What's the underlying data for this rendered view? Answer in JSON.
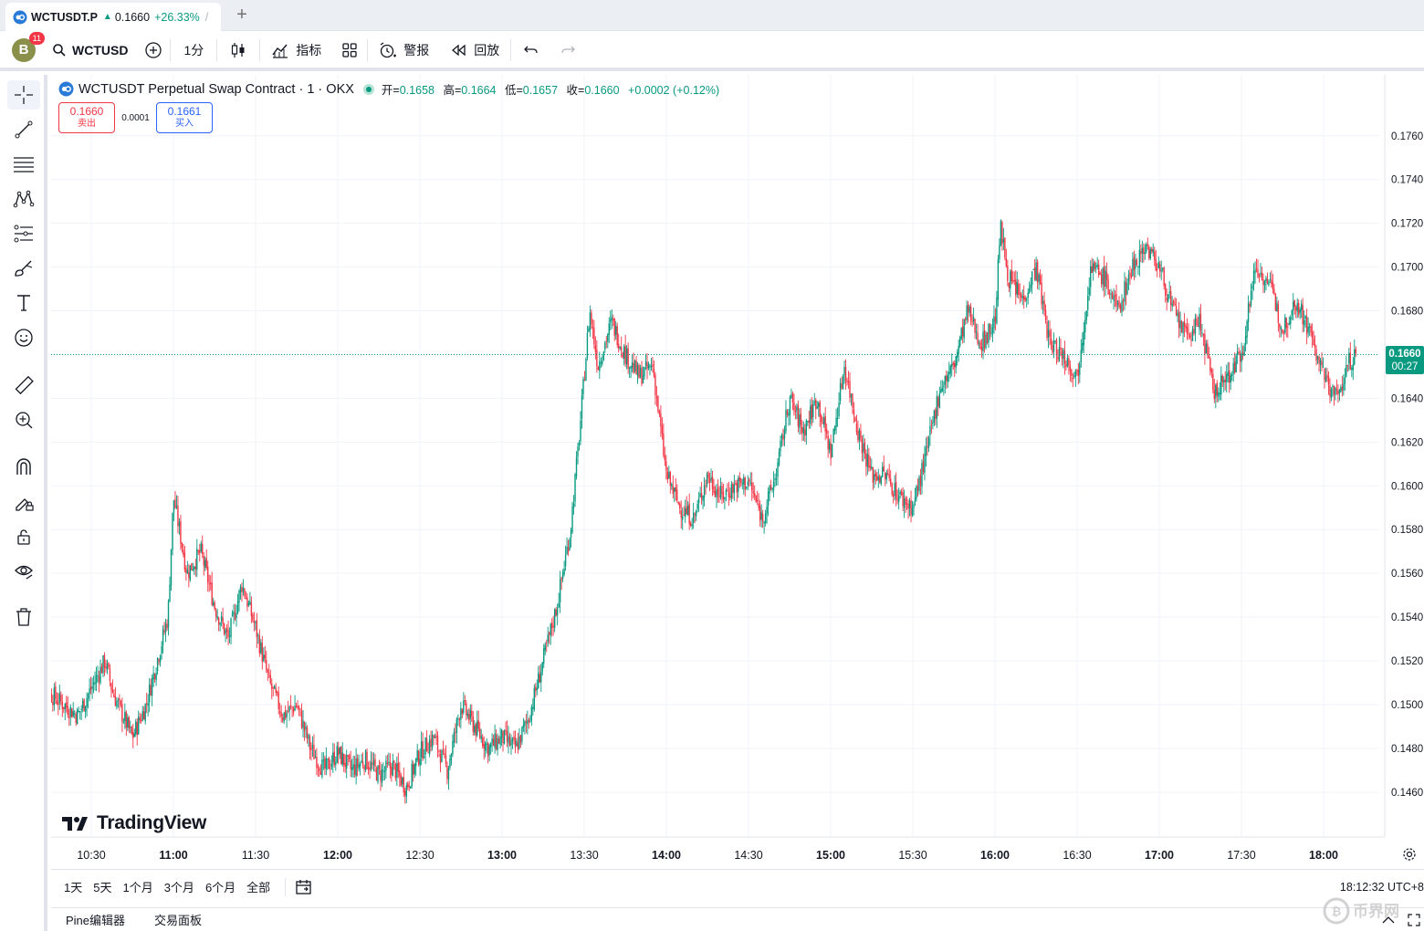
{
  "tab": {
    "symbol": "WCTUSDT.P",
    "price": "0.1660",
    "change": "+26.33%",
    "slash": "/"
  },
  "toolbar": {
    "avatar_letter": "B",
    "notifications": "11",
    "search_symbol": "WCTUSD",
    "interval": "1分",
    "indicators_label": "指标",
    "alert_label": "警报",
    "replay_label": "回放"
  },
  "legend": {
    "title": "WCTUSDT Perpetual Swap Contract · 1 · OKX",
    "open_label": "开=",
    "open": "0.1658",
    "high_label": "高=",
    "high": "0.1664",
    "low_label": "低=",
    "low": "0.1657",
    "close_label": "收=",
    "close": "0.1660",
    "change": "+0.0002 (+0.12%)"
  },
  "trade": {
    "sell_price": "0.1660",
    "sell_label": "卖出",
    "spread": "0.0001",
    "buy_price": "0.1661",
    "buy_label": "买入"
  },
  "price_tag": {
    "price": "0.1660",
    "countdown": "00:27"
  },
  "brand": "TradingView",
  "bottom": {
    "ranges": [
      "1天",
      "5天",
      "1个月",
      "3个月",
      "6个月",
      "全部"
    ],
    "clock": "18:12:32 UTC+8"
  },
  "panels": {
    "pine": "Pine编辑器",
    "trading": "交易面板"
  },
  "colors": {
    "up": "#089981",
    "down": "#f23645",
    "grid": "#f0f3fa",
    "accent": "#2962ff"
  },
  "chart_data": {
    "type": "candlestick",
    "interval": "1m",
    "y_ticks": [
      "0.1760",
      "0.1740",
      "0.1720",
      "0.1700",
      "0.1680",
      "0.1660",
      "0.1640",
      "0.1620",
      "0.1600",
      "0.1580",
      "0.1560",
      "0.1540",
      "0.1520",
      "0.1500",
      "0.1480",
      "0.1460"
    ],
    "x_ticks": [
      "10:30",
      "11:00",
      "11:30",
      "12:00",
      "12:30",
      "13:00",
      "13:30",
      "14:00",
      "14:30",
      "15:00",
      "15:30",
      "16:00",
      "16:30",
      "17:00",
      "17:30",
      "18:00"
    ],
    "ylim": [
      0.1452,
      0.1772
    ],
    "current_price": 0.166,
    "path": [
      [
        "10:09",
        0.1472
      ],
      [
        "10:15",
        0.1505
      ],
      [
        "10:25",
        0.1495
      ],
      [
        "10:35",
        0.152
      ],
      [
        "10:38",
        0.1505
      ],
      [
        "10:45",
        0.1485
      ],
      [
        "10:50",
        0.15
      ],
      [
        "10:58",
        0.154
      ],
      [
        "11:00",
        0.1595
      ],
      [
        "11:05",
        0.156
      ],
      [
        "11:10",
        0.157
      ],
      [
        "11:15",
        0.1545
      ],
      [
        "11:20",
        0.153
      ],
      [
        "11:25",
        0.1555
      ],
      [
        "11:30",
        0.1535
      ],
      [
        "11:35",
        0.151
      ],
      [
        "11:40",
        0.1495
      ],
      [
        "11:45",
        0.15
      ],
      [
        "11:50",
        0.148
      ],
      [
        "11:55",
        0.147
      ],
      [
        "12:00",
        0.1478
      ],
      [
        "12:05",
        0.147
      ],
      [
        "12:10",
        0.1475
      ],
      [
        "12:15",
        0.1468
      ],
      [
        "12:20",
        0.1472
      ],
      [
        "12:25",
        0.1462
      ],
      [
        "12:30",
        0.1478
      ],
      [
        "12:35",
        0.1485
      ],
      [
        "12:40",
        0.147
      ],
      [
        "12:45",
        0.15
      ],
      [
        "12:50",
        0.149
      ],
      [
        "12:55",
        0.148
      ],
      [
        "13:00",
        0.1485
      ],
      [
        "13:05",
        0.148
      ],
      [
        "13:10",
        0.1495
      ],
      [
        "13:15",
        0.152
      ],
      [
        "13:20",
        0.1545
      ],
      [
        "13:25",
        0.158
      ],
      [
        "13:28",
        0.162
      ],
      [
        "13:32",
        0.168
      ],
      [
        "13:35",
        0.1655
      ],
      [
        "13:40",
        0.1675
      ],
      [
        "13:45",
        0.166
      ],
      [
        "13:50",
        0.165
      ],
      [
        "13:55",
        0.1655
      ],
      [
        "14:00",
        0.1605
      ],
      [
        "14:05",
        0.159
      ],
      [
        "14:10",
        0.1585
      ],
      [
        "14:15",
        0.1605
      ],
      [
        "14:20",
        0.1595
      ],
      [
        "14:25",
        0.16
      ],
      [
        "14:30",
        0.1602
      ],
      [
        "14:35",
        0.1585
      ],
      [
        "14:40",
        0.1605
      ],
      [
        "14:45",
        0.164
      ],
      [
        "14:50",
        0.1625
      ],
      [
        "14:55",
        0.164
      ],
      [
        "15:00",
        0.1615
      ],
      [
        "15:05",
        0.1655
      ],
      [
        "15:10",
        0.1625
      ],
      [
        "15:15",
        0.1605
      ],
      [
        "15:20",
        0.1605
      ],
      [
        "15:25",
        0.1595
      ],
      [
        "15:30",
        0.159
      ],
      [
        "15:35",
        0.1615
      ],
      [
        "15:40",
        0.1645
      ],
      [
        "15:45",
        0.1655
      ],
      [
        "15:50",
        0.168
      ],
      [
        "15:55",
        0.1665
      ],
      [
        "16:00",
        0.1675
      ],
      [
        "16:02",
        0.1718
      ],
      [
        "16:05",
        0.1695
      ],
      [
        "16:10",
        0.1685
      ],
      [
        "16:15",
        0.17
      ],
      [
        "16:20",
        0.1665
      ],
      [
        "16:25",
        0.166
      ],
      [
        "16:30",
        0.165
      ],
      [
        "16:35",
        0.17
      ],
      [
        "16:40",
        0.1695
      ],
      [
        "16:45",
        0.168
      ],
      [
        "16:50",
        0.17
      ],
      [
        "16:55",
        0.171
      ],
      [
        "17:00",
        0.17
      ],
      [
        "17:05",
        0.168
      ],
      [
        "17:10",
        0.1668
      ],
      [
        "17:15",
        0.1675
      ],
      [
        "17:20",
        0.1642
      ],
      [
        "17:25",
        0.165
      ],
      [
        "17:30",
        0.166
      ],
      [
        "17:35",
        0.17
      ],
      [
        "17:40",
        0.1693
      ],
      [
        "17:45",
        0.1672
      ],
      [
        "17:50",
        0.1685
      ],
      [
        "17:55",
        0.167
      ],
      [
        "18:00",
        0.165
      ],
      [
        "18:05",
        0.164
      ],
      [
        "18:09",
        0.1656
      ],
      [
        "18:12",
        0.166
      ]
    ]
  }
}
